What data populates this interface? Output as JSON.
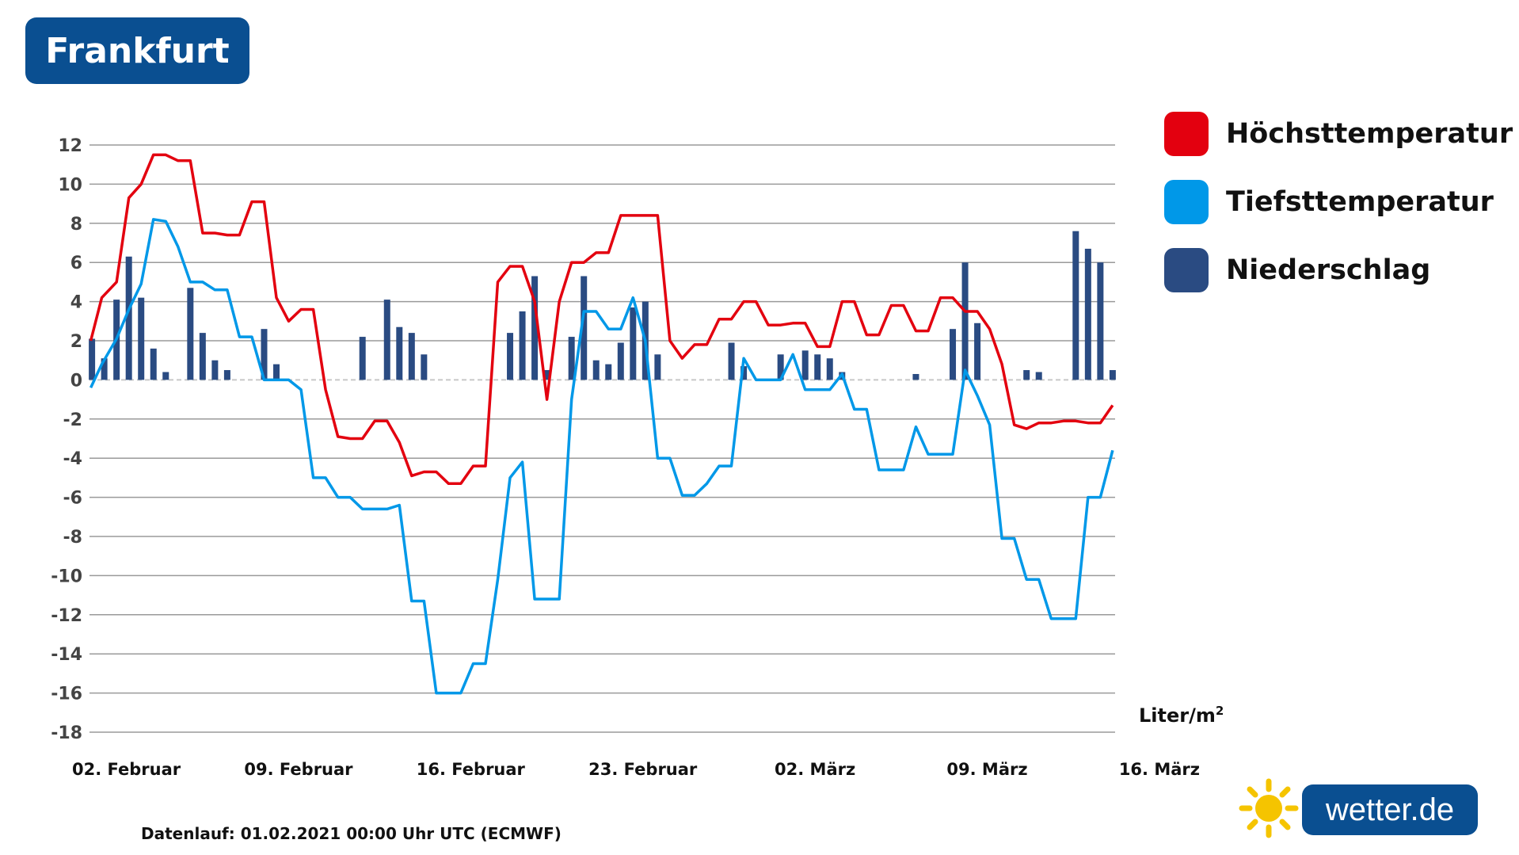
{
  "title": "Frankfurt",
  "legend": [
    {
      "label": "Höchsttemperatur",
      "color": "#e3000f"
    },
    {
      "label": "Tiefsttemperatur",
      "color": "#0098e8"
    },
    {
      "label": "Niederschlag",
      "color": "#2a4b82"
    }
  ],
  "unit_label": "Liter/m",
  "unit_sup": "2",
  "footnote": "Datenlauf: 01.02.2021 00:00 Uhr UTC (ECMWF)",
  "logo": {
    "text": "wetter.de",
    "icon": "sun-icon"
  },
  "chart_data": {
    "type": "line",
    "ylim": [
      -18,
      12
    ],
    "yticks": [
      "12",
      "10",
      "8",
      "6",
      "4",
      "2",
      "0",
      "-2",
      "-4",
      "-6",
      "-8",
      "-10",
      "-12",
      "-14",
      "-16",
      "-18"
    ],
    "xtick_labels": [
      "02. Februar",
      "09. Februar",
      "16. Februar",
      "23. Februar",
      "02. März",
      "09. März",
      "16. März"
    ],
    "xtick_positions": [
      2,
      9,
      16,
      23,
      30,
      37,
      44
    ],
    "x_unit": "day since 01. Februar",
    "series": [
      {
        "name": "Höchsttemperatur",
        "color": "#e3000f",
        "type": "line",
        "points": [
          [
            0.05,
            2
          ],
          [
            0.5,
            4.2
          ],
          [
            1.1,
            5
          ],
          [
            1.6,
            9.3
          ],
          [
            2.1,
            10
          ],
          [
            2.6,
            11.5
          ],
          [
            3.1,
            11.5
          ],
          [
            3.6,
            11.2
          ],
          [
            4.1,
            11.2
          ],
          [
            4.6,
            7.5
          ],
          [
            5.1,
            7.5
          ],
          [
            5.6,
            7.4
          ],
          [
            6.1,
            7.4
          ],
          [
            6.6,
            9.1
          ],
          [
            7.1,
            9.1
          ],
          [
            7.6,
            4.2
          ],
          [
            8.1,
            3
          ],
          [
            8.6,
            3.6
          ],
          [
            9.1,
            3.6
          ],
          [
            9.6,
            -0.5
          ],
          [
            10.1,
            -2.9
          ],
          [
            10.6,
            -3
          ],
          [
            11.1,
            -3
          ],
          [
            11.6,
            -2.1
          ],
          [
            12.1,
            -2.1
          ],
          [
            12.6,
            -3.2
          ],
          [
            13.1,
            -4.9
          ],
          [
            13.6,
            -4.7
          ],
          [
            14.1,
            -4.7
          ],
          [
            14.6,
            -5.3
          ],
          [
            15.1,
            -5.3
          ],
          [
            15.6,
            -4.4
          ],
          [
            16.1,
            -4.4
          ],
          [
            16.6,
            5
          ],
          [
            17.1,
            5.8
          ],
          [
            17.6,
            5.8
          ],
          [
            18.1,
            4
          ],
          [
            18.6,
            -1
          ],
          [
            19.1,
            4
          ],
          [
            19.6,
            6
          ],
          [
            20.1,
            6
          ],
          [
            20.6,
            6.5
          ],
          [
            21.1,
            6.5
          ],
          [
            21.6,
            8.4
          ],
          [
            22.1,
            8.4
          ],
          [
            22.6,
            8.4
          ],
          [
            23.1,
            8.4
          ],
          [
            23.6,
            2
          ],
          [
            24.1,
            1.1
          ],
          [
            24.6,
            1.8
          ],
          [
            25.1,
            1.8
          ],
          [
            25.6,
            3.1
          ],
          [
            26.1,
            3.1
          ],
          [
            26.6,
            4
          ],
          [
            27.1,
            4
          ],
          [
            27.6,
            2.8
          ],
          [
            28.1,
            2.8
          ],
          [
            28.6,
            2.9
          ],
          [
            29.1,
            2.9
          ],
          [
            29.6,
            1.7
          ],
          [
            30.1,
            1.7
          ],
          [
            30.6,
            4
          ],
          [
            31.1,
            4
          ],
          [
            31.6,
            2.3
          ],
          [
            32.1,
            2.3
          ],
          [
            32.6,
            3.8
          ],
          [
            33.1,
            3.8
          ],
          [
            33.6,
            2.5
          ],
          [
            34.1,
            2.5
          ],
          [
            34.6,
            4.2
          ],
          [
            35.1,
            4.2
          ],
          [
            35.6,
            3.5
          ],
          [
            36.1,
            3.5
          ],
          [
            36.6,
            2.6
          ],
          [
            37.1,
            0.8
          ],
          [
            37.6,
            -2.3
          ],
          [
            38.1,
            -2.5
          ],
          [
            38.6,
            -2.2
          ],
          [
            39.1,
            -2.2
          ],
          [
            39.6,
            -2.1
          ],
          [
            40.1,
            -2.1
          ],
          [
            40.6,
            -2.2
          ],
          [
            41.1,
            -2.2
          ],
          [
            41.6,
            -1.3
          ]
        ]
      },
      {
        "name": "Tiefsttemperatur",
        "color": "#0098e8",
        "type": "line",
        "points": [
          [
            0.05,
            -0.4
          ],
          [
            0.5,
            0.8
          ],
          [
            1.1,
            2.1
          ],
          [
            1.6,
            3.6
          ],
          [
            2.1,
            4.9
          ],
          [
            2.6,
            8.2
          ],
          [
            3.1,
            8.1
          ],
          [
            3.6,
            6.8
          ],
          [
            4.1,
            5
          ],
          [
            4.6,
            5
          ],
          [
            5.1,
            4.6
          ],
          [
            5.6,
            4.6
          ],
          [
            6.1,
            2.2
          ],
          [
            6.6,
            2.2
          ],
          [
            7.1,
            0
          ],
          [
            7.6,
            0
          ],
          [
            8.1,
            0
          ],
          [
            8.6,
            -0.5
          ],
          [
            9.1,
            -5
          ],
          [
            9.6,
            -5
          ],
          [
            10.1,
            -6
          ],
          [
            10.6,
            -6
          ],
          [
            11.1,
            -6.6
          ],
          [
            11.6,
            -6.6
          ],
          [
            12.1,
            -6.6
          ],
          [
            12.6,
            -6.4
          ],
          [
            13.1,
            -11.3
          ],
          [
            13.6,
            -11.3
          ],
          [
            14.1,
            -16
          ],
          [
            14.6,
            -16
          ],
          [
            15.1,
            -16
          ],
          [
            15.6,
            -14.5
          ],
          [
            16.1,
            -14.5
          ],
          [
            16.6,
            -10.2
          ],
          [
            17.1,
            -5
          ],
          [
            17.6,
            -4.2
          ],
          [
            18.1,
            -11.2
          ],
          [
            18.6,
            -11.2
          ],
          [
            19.1,
            -11.2
          ],
          [
            19.6,
            -1
          ],
          [
            20.1,
            3.5
          ],
          [
            20.6,
            3.5
          ],
          [
            21.1,
            2.6
          ],
          [
            21.6,
            2.6
          ],
          [
            22.1,
            4.2
          ],
          [
            22.6,
            2
          ],
          [
            23.1,
            -4
          ],
          [
            23.6,
            -4
          ],
          [
            24.1,
            -5.9
          ],
          [
            24.6,
            -5.9
          ],
          [
            25.1,
            -5.3
          ],
          [
            25.6,
            -4.4
          ],
          [
            26.1,
            -4.4
          ],
          [
            26.6,
            1.1
          ],
          [
            27.1,
            0
          ],
          [
            27.6,
            0
          ],
          [
            28.1,
            0
          ],
          [
            28.6,
            1.3
          ],
          [
            29.1,
            -0.5
          ],
          [
            29.6,
            -0.5
          ],
          [
            30.1,
            -0.5
          ],
          [
            30.6,
            0.3
          ],
          [
            31.1,
            -1.5
          ],
          [
            31.6,
            -1.5
          ],
          [
            32.1,
            -4.6
          ],
          [
            32.6,
            -4.6
          ],
          [
            33.1,
            -4.6
          ],
          [
            33.6,
            -2.4
          ],
          [
            34.1,
            -3.8
          ],
          [
            34.6,
            -3.8
          ],
          [
            35.1,
            -3.8
          ],
          [
            35.6,
            0.5
          ],
          [
            36.1,
            -0.8
          ],
          [
            36.6,
            -2.3
          ],
          [
            37.1,
            -8.1
          ],
          [
            37.6,
            -8.1
          ],
          [
            38.1,
            -10.2
          ],
          [
            38.6,
            -10.2
          ],
          [
            39.1,
            -12.2
          ],
          [
            39.6,
            -12.2
          ],
          [
            40.1,
            -12.2
          ],
          [
            40.6,
            -6
          ],
          [
            41.1,
            -6
          ],
          [
            41.6,
            -3.6
          ]
        ]
      },
      {
        "name": "Niederschlag",
        "color": "#2a4b82",
        "type": "bar",
        "points": [
          [
            0.1,
            2.1
          ],
          [
            0.6,
            1.1
          ],
          [
            1.1,
            4.1
          ],
          [
            1.6,
            6.3
          ],
          [
            2.1,
            4.2
          ],
          [
            2.6,
            1.6
          ],
          [
            3.1,
            0.4
          ],
          [
            4.1,
            4.7
          ],
          [
            4.6,
            2.4
          ],
          [
            5.1,
            1
          ],
          [
            5.6,
            0.5
          ],
          [
            7.1,
            2.6
          ],
          [
            7.6,
            0.8
          ],
          [
            11.1,
            2.2
          ],
          [
            12.1,
            4.1
          ],
          [
            12.6,
            2.7
          ],
          [
            13.1,
            2.4
          ],
          [
            13.6,
            1.3
          ],
          [
            17.1,
            2.4
          ],
          [
            17.6,
            3.5
          ],
          [
            18.1,
            5.3
          ],
          [
            18.6,
            0.5
          ],
          [
            19.6,
            2.2
          ],
          [
            20.1,
            5.3
          ],
          [
            20.6,
            1
          ],
          [
            21.1,
            0.8
          ],
          [
            21.6,
            1.9
          ],
          [
            22.1,
            3.7
          ],
          [
            22.6,
            4
          ],
          [
            23.1,
            1.3
          ],
          [
            26.1,
            1.9
          ],
          [
            26.6,
            0.7
          ],
          [
            28.1,
            1.3
          ],
          [
            29.1,
            1.5
          ],
          [
            29.6,
            1.3
          ],
          [
            30.1,
            1.1
          ],
          [
            30.6,
            0.4
          ],
          [
            33.6,
            0.3
          ],
          [
            35.1,
            2.6
          ],
          [
            35.6,
            6
          ],
          [
            36.1,
            2.9
          ],
          [
            38.1,
            0.5
          ],
          [
            38.6,
            0.4
          ],
          [
            40.1,
            7.6
          ],
          [
            40.6,
            6.7
          ],
          [
            41.1,
            6
          ],
          [
            41.6,
            0.5
          ]
        ]
      }
    ]
  }
}
